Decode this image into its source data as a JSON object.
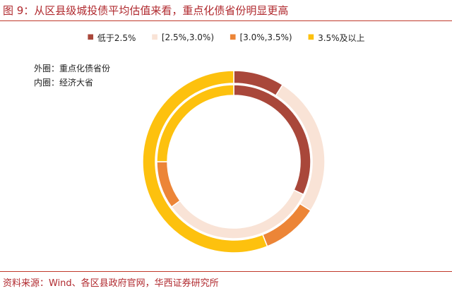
{
  "title": "图 9：从区县级城投债平均估值来看，重点化债省份明显更高",
  "notes": {
    "outer": "外圈：重点化债省份",
    "inner": "内圈：经济大省"
  },
  "source": "资料来源：Wind、各区县政府官网，华西证券研究所",
  "chart_data": {
    "type": "pie",
    "subtype": "double-donut",
    "categories": [
      "低于2.5%",
      "[2.5%,3.0%)",
      "[3.0%,3.5%)",
      "3.5%及以上"
    ],
    "colors": [
      "#a9473a",
      "#f9e3d6",
      "#ec8537",
      "#fdc10e"
    ],
    "legend_position": "top",
    "series": [
      {
        "name": "外圈：重点化债省份",
        "ring": "outer",
        "values": [
          9,
          25,
          10,
          56
        ]
      },
      {
        "name": "内圈：经济大省",
        "ring": "inner",
        "values": [
          32,
          33,
          10,
          25
        ]
      }
    ]
  }
}
